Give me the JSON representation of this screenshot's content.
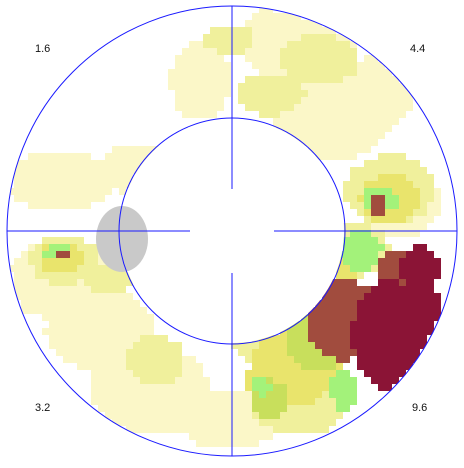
{
  "quadrants": {
    "upper_left": "1.6",
    "upper_right": "4.4",
    "lower_left": "3.2",
    "lower_right": "9.6"
  },
  "legend_colors": {
    "level_1": "#fbf7c8",
    "level_2": "#f0f09c",
    "level_3": "#e9e46c",
    "level_4": "#c8df5c",
    "level_5": "#a3f27a",
    "level_6": "#a14c3e",
    "level_7": "#8b1436"
  },
  "structure_colors": {
    "reticle": "#1a1aff",
    "blind_spot": "#c9c9c9"
  }
}
